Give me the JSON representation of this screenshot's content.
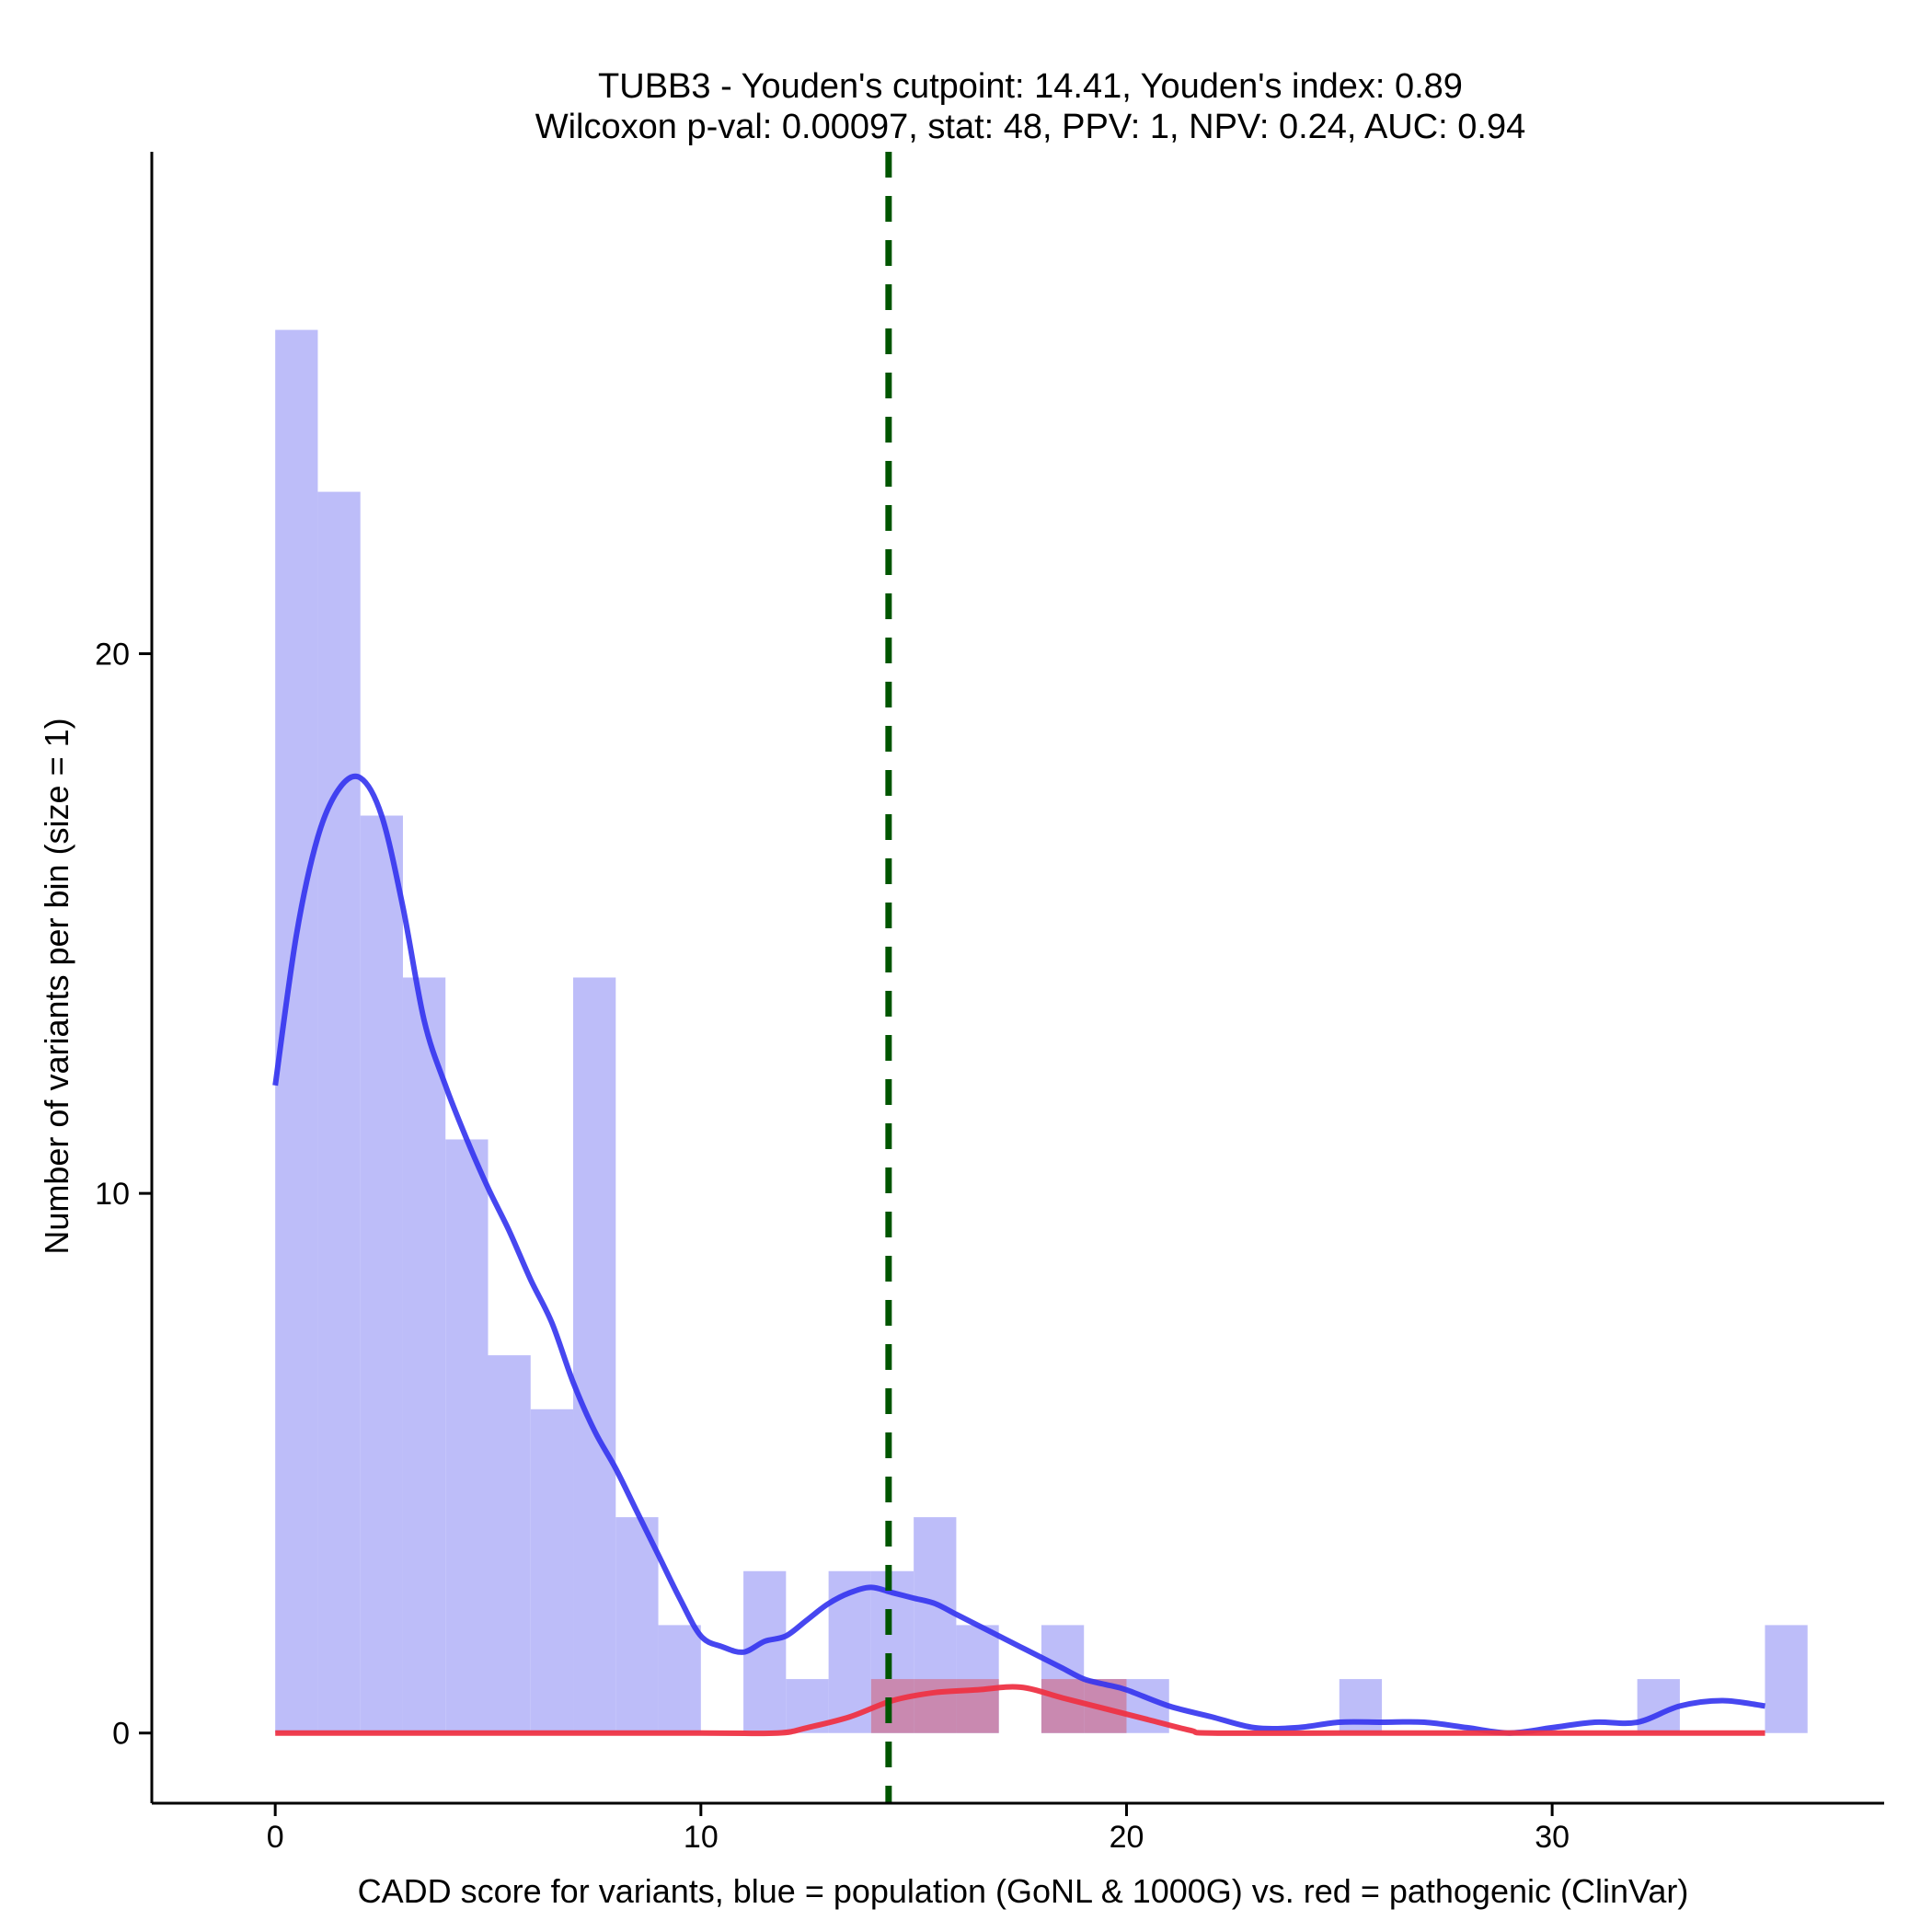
{
  "chart_data": {
    "type": "histogram",
    "title": [
      "TUBB3 - Youden's cutpoint: 14.41, Youden's index: 0.89",
      "Wilcoxon p-val: 0.00097, stat: 48, PPV: 1, NPV: 0.24, AUC: 0.94"
    ],
    "xlabel": "CADD score for variants, blue = population (GoNL & 1000G) vs. red = pathogenic (ClinVar)",
    "ylabel": "Number of variants per bin (size = 1)",
    "xlim": [
      -2.9,
      37.8
    ],
    "ylim": [
      -1.3,
      29.3
    ],
    "x_ticks": [
      0,
      10,
      20,
      30
    ],
    "y_ticks": [
      0,
      10,
      20
    ],
    "bin_width": 1,
    "cutpoint": 14.41,
    "colors": {
      "population": "#bdbdf9",
      "pathogenic": "#c986ac",
      "population_line": "#3333ee",
      "pathogenic_line": "#ee3344",
      "cutpoint_line": "#005500"
    },
    "series": [
      {
        "name": "population",
        "bins": [
          {
            "x": 0,
            "y": 26
          },
          {
            "x": 1,
            "y": 23
          },
          {
            "x": 2,
            "y": 17
          },
          {
            "x": 3,
            "y": 14
          },
          {
            "x": 4,
            "y": 11
          },
          {
            "x": 5,
            "y": 7
          },
          {
            "x": 6,
            "y": 6
          },
          {
            "x": 7,
            "y": 14
          },
          {
            "x": 8,
            "y": 4
          },
          {
            "x": 9,
            "y": 2
          },
          {
            "x": 11,
            "y": 3
          },
          {
            "x": 12,
            "y": 1
          },
          {
            "x": 13,
            "y": 3
          },
          {
            "x": 14,
            "y": 3
          },
          {
            "x": 15,
            "y": 4
          },
          {
            "x": 16,
            "y": 2
          },
          {
            "x": 18,
            "y": 2
          },
          {
            "x": 19,
            "y": 1
          },
          {
            "x": 20,
            "y": 1
          },
          {
            "x": 25,
            "y": 1
          },
          {
            "x": 32,
            "y": 1
          },
          {
            "x": 35,
            "y": 2
          }
        ],
        "density_curve": [
          [
            0,
            12.0
          ],
          [
            0.5,
            14.8
          ],
          [
            1,
            16.6
          ],
          [
            1.5,
            17.5
          ],
          [
            2,
            17.7
          ],
          [
            2.5,
            17.0
          ],
          [
            3,
            15.3
          ],
          [
            3.5,
            13.2
          ],
          [
            4,
            12.0
          ],
          [
            4.5,
            11.0
          ],
          [
            5,
            10.1
          ],
          [
            5.5,
            9.3
          ],
          [
            6,
            8.4
          ],
          [
            6.5,
            7.6
          ],
          [
            7,
            6.5
          ],
          [
            7.5,
            5.6
          ],
          [
            8,
            4.9
          ],
          [
            8.5,
            4.1
          ],
          [
            9,
            3.3
          ],
          [
            9.5,
            2.5
          ],
          [
            10,
            1.8
          ],
          [
            10.5,
            1.6
          ],
          [
            11,
            1.5
          ],
          [
            11.5,
            1.7
          ],
          [
            12,
            1.8
          ],
          [
            12.5,
            2.1
          ],
          [
            13,
            2.4
          ],
          [
            13.5,
            2.6
          ],
          [
            14,
            2.7
          ],
          [
            14.5,
            2.6
          ],
          [
            15,
            2.5
          ],
          [
            15.5,
            2.4
          ],
          [
            16,
            2.2
          ],
          [
            16.5,
            2.0
          ],
          [
            17,
            1.8
          ],
          [
            17.5,
            1.6
          ],
          [
            18,
            1.4
          ],
          [
            18.5,
            1.2
          ],
          [
            19,
            1.0
          ],
          [
            19.5,
            0.9
          ],
          [
            20,
            0.8
          ],
          [
            21,
            0.5
          ],
          [
            22,
            0.3
          ],
          [
            23,
            0.1
          ],
          [
            24,
            0.1
          ],
          [
            25,
            0.2
          ],
          [
            26,
            0.2
          ],
          [
            27,
            0.2
          ],
          [
            28,
            0.1
          ],
          [
            29,
            0.0
          ],
          [
            30,
            0.1
          ],
          [
            31,
            0.2
          ],
          [
            32,
            0.2
          ],
          [
            33,
            0.5
          ],
          [
            34,
            0.6
          ],
          [
            35,
            0.5
          ]
        ]
      },
      {
        "name": "pathogenic",
        "bins": [
          {
            "x": 14,
            "y": 1
          },
          {
            "x": 15,
            "y": 1
          },
          {
            "x": 16,
            "y": 1
          },
          {
            "x": 18,
            "y": 1
          },
          {
            "x": 19,
            "y": 1
          }
        ],
        "density_curve": [
          [
            0,
            0
          ],
          [
            5,
            0
          ],
          [
            10,
            0
          ],
          [
            11.8,
            0
          ],
          [
            12.5,
            0.1
          ],
          [
            13.5,
            0.3
          ],
          [
            14.5,
            0.6
          ],
          [
            15.5,
            0.75
          ],
          [
            16.5,
            0.8
          ],
          [
            17.5,
            0.85
          ],
          [
            18.5,
            0.65
          ],
          [
            19.5,
            0.45
          ],
          [
            20.5,
            0.25
          ],
          [
            21.5,
            0.05
          ],
          [
            22,
            0
          ],
          [
            25,
            0
          ],
          [
            30,
            0
          ],
          [
            35,
            0
          ]
        ]
      }
    ]
  }
}
